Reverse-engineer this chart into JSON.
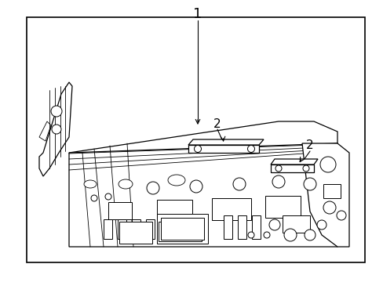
{
  "background_color": "#ffffff",
  "border_color": "#000000",
  "line_color": "#000000",
  "label_1": "1",
  "label_2": "2",
  "figsize": [
    4.89,
    3.6
  ],
  "dpi": 100,
  "border": [
    0.07,
    0.06,
    0.88,
    0.87
  ]
}
